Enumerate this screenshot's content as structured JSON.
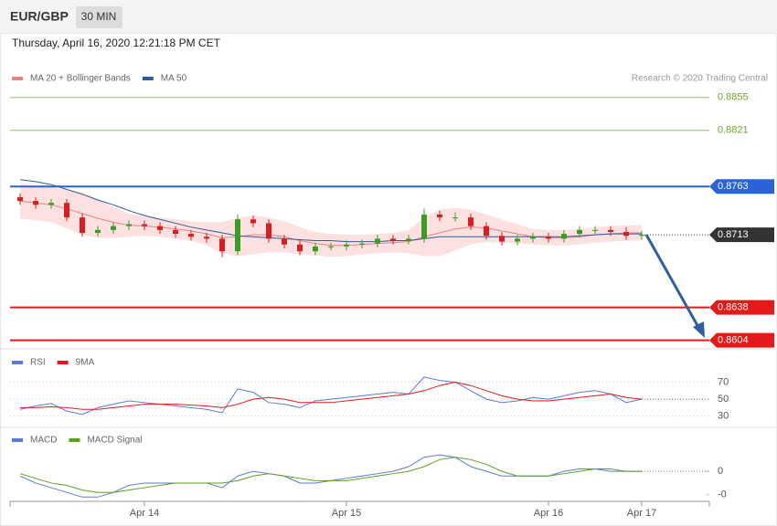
{
  "header": {
    "symbol": "EUR/GBP",
    "interval": "30 MIN",
    "timestamp": "Thursday, April 16, 2020 12:21:18 PM CET"
  },
  "chart_data": [
    {
      "type": "candlestick",
      "credit": "Research © 2020 Trading Central",
      "up_color": "#3a9d23",
      "down_color": "#d62020",
      "ylim": [
        0.8597,
        0.8885
      ],
      "open": [
        0.8752,
        0.8748,
        0.8744,
        0.8746,
        0.8731,
        0.8715,
        0.8718,
        0.8722,
        0.8724,
        0.8722,
        0.8718,
        0.8714,
        0.8711,
        0.8709,
        0.8696,
        0.8729,
        0.8725,
        0.8709,
        0.8703,
        0.8696,
        0.8701,
        0.8701,
        0.8703,
        0.8704,
        0.8709,
        0.8707,
        0.8709,
        0.8734,
        0.8731,
        0.8731,
        0.8722,
        0.8712,
        0.8706,
        0.8709,
        0.8711,
        0.8709,
        0.8714,
        0.8718,
        0.8718,
        0.8716,
        0.8712
      ],
      "high": [
        0.8756,
        0.8752,
        0.875,
        0.875,
        0.8735,
        0.8722,
        0.8726,
        0.8728,
        0.8728,
        0.8726,
        0.8722,
        0.8718,
        0.8715,
        0.8713,
        0.8734,
        0.8733,
        0.8729,
        0.8713,
        0.8707,
        0.8705,
        0.8705,
        0.8707,
        0.8708,
        0.8713,
        0.8713,
        0.8713,
        0.874,
        0.8738,
        0.8736,
        0.8735,
        0.8726,
        0.8716,
        0.8713,
        0.8715,
        0.8715,
        0.8718,
        0.8722,
        0.8722,
        0.8722,
        0.8721,
        0.8717
      ],
      "low": [
        0.8744,
        0.874,
        0.874,
        0.8727,
        0.8711,
        0.8711,
        0.8714,
        0.8718,
        0.8718,
        0.8714,
        0.871,
        0.8707,
        0.8705,
        0.869,
        0.8692,
        0.8721,
        0.8705,
        0.8699,
        0.8692,
        0.8692,
        0.8697,
        0.8697,
        0.8699,
        0.87,
        0.8703,
        0.8703,
        0.8705,
        0.8727,
        0.8727,
        0.8718,
        0.8708,
        0.8702,
        0.8702,
        0.8705,
        0.8705,
        0.8705,
        0.871,
        0.8714,
        0.8712,
        0.8708,
        0.8708
      ],
      "close": [
        0.8748,
        0.8744,
        0.8746,
        0.8731,
        0.8715,
        0.8718,
        0.8722,
        0.8724,
        0.8722,
        0.8718,
        0.8714,
        0.8711,
        0.8709,
        0.8696,
        0.8729,
        0.8725,
        0.8709,
        0.8703,
        0.8696,
        0.8701,
        0.8701,
        0.8703,
        0.8704,
        0.8709,
        0.8707,
        0.8709,
        0.8734,
        0.8731,
        0.8731,
        0.8722,
        0.8712,
        0.8706,
        0.8709,
        0.8711,
        0.8709,
        0.8714,
        0.8718,
        0.8718,
        0.8716,
        0.8712,
        0.8713
      ],
      "series": [
        {
          "name": "MA 20 + Bollinger Bands",
          "color": "#f08080",
          "band_color": "#fde0e0",
          "values": [
            0.8748,
            0.8746,
            0.8744,
            0.874,
            0.8735,
            0.873,
            0.8726,
            0.8723,
            0.8722,
            0.8721,
            0.8719,
            0.8717,
            0.8714,
            0.871,
            0.8711,
            0.8713,
            0.8713,
            0.8711,
            0.8707,
            0.8704,
            0.8702,
            0.8702,
            0.8703,
            0.8704,
            0.8705,
            0.8706,
            0.8711,
            0.8715,
            0.8719,
            0.8721,
            0.872,
            0.8717,
            0.8714,
            0.8711,
            0.871,
            0.871,
            0.8711,
            0.8713,
            0.8714,
            0.8715,
            0.8715
          ],
          "upper": [
            0.8766,
            0.8764,
            0.8762,
            0.876,
            0.8757,
            0.875,
            0.8742,
            0.8735,
            0.8732,
            0.8731,
            0.8729,
            0.8727,
            0.8726,
            0.8726,
            0.8731,
            0.8733,
            0.8731,
            0.8727,
            0.8721,
            0.8716,
            0.8714,
            0.8713,
            0.8713,
            0.8714,
            0.8715,
            0.8718,
            0.8731,
            0.8739,
            0.8741,
            0.8739,
            0.8734,
            0.8729,
            0.8724,
            0.8719,
            0.8718,
            0.8718,
            0.8719,
            0.8721,
            0.8722,
            0.8723,
            0.8723
          ],
          "lower": [
            0.873,
            0.8728,
            0.8726,
            0.872,
            0.8713,
            0.871,
            0.871,
            0.8711,
            0.8712,
            0.8711,
            0.8709,
            0.8707,
            0.8702,
            0.8694,
            0.8691,
            0.8693,
            0.8695,
            0.8695,
            0.8693,
            0.8692,
            0.869,
            0.8691,
            0.8693,
            0.8694,
            0.8695,
            0.8694,
            0.8691,
            0.8691,
            0.8697,
            0.8703,
            0.8706,
            0.8705,
            0.8704,
            0.8703,
            0.8702,
            0.8702,
            0.8703,
            0.8705,
            0.8706,
            0.8707,
            0.8707
          ]
        },
        {
          "name": "MA 50",
          "color": "#2c5aa0",
          "values": [
            0.877,
            0.8768,
            0.8765,
            0.876,
            0.8755,
            0.8749,
            0.8744,
            0.8738,
            0.8733,
            0.8729,
            0.8725,
            0.8721,
            0.8718,
            0.8715,
            0.8712,
            0.8711,
            0.871,
            0.8709,
            0.8708,
            0.8707,
            0.8707,
            0.8706,
            0.8706,
            0.8706,
            0.8707,
            0.8707,
            0.8709,
            0.8711,
            0.8711,
            0.8711,
            0.8711,
            0.8711,
            0.8711,
            0.8711,
            0.8711,
            0.8711,
            0.8712,
            0.8713,
            0.8714,
            0.8714,
            0.8714
          ]
        }
      ],
      "levels": [
        {
          "value": 0.8855,
          "color": "#6aa52e",
          "tag": false
        },
        {
          "value": 0.8821,
          "color": "#6aa52e",
          "tag": false
        },
        {
          "value": 0.8763,
          "color": "#2962d9",
          "tag": true
        },
        {
          "value": 0.8713,
          "color": "#333333",
          "tag": true,
          "style": "dotted"
        },
        {
          "value": 0.8638,
          "color": "#e31a1a",
          "tag": true
        },
        {
          "value": 0.8604,
          "color": "#e31a1a",
          "tag": true
        }
      ]
    },
    {
      "type": "line",
      "ylim": [
        20,
        106
      ],
      "yticks": [
        30,
        50,
        70
      ],
      "grid": true,
      "series": [
        {
          "name": "RSI",
          "color": "#5b7bd5",
          "values": [
            38,
            42,
            45,
            36,
            32,
            40,
            44,
            48,
            46,
            44,
            42,
            40,
            38,
            34,
            62,
            58,
            46,
            44,
            40,
            48,
            50,
            52,
            54,
            56,
            58,
            56,
            76,
            72,
            70,
            60,
            50,
            46,
            48,
            52,
            50,
            54,
            58,
            60,
            56,
            46,
            50
          ]
        },
        {
          "name": "9MA",
          "color": "#e31a1a",
          "values": [
            40,
            40,
            41,
            40,
            38,
            38,
            40,
            42,
            44,
            44,
            44,
            43,
            42,
            40,
            44,
            50,
            52,
            50,
            46,
            46,
            46,
            48,
            50,
            52,
            54,
            56,
            60,
            66,
            70,
            66,
            60,
            54,
            50,
            48,
            48,
            50,
            52,
            54,
            56,
            52,
            50
          ]
        }
      ]
    },
    {
      "type": "line",
      "ylim": [
        -0.0014,
        0.0018
      ],
      "yticks": [
        0,
        {
          "value": -0.001,
          "label": "-0"
        }
      ],
      "grid": false,
      "categories": [
        null,
        null,
        null,
        null,
        null,
        null,
        null,
        null,
        "Apr 14",
        null,
        null,
        null,
        null,
        null,
        null,
        null,
        null,
        null,
        null,
        null,
        null,
        "Apr 15",
        null,
        null,
        null,
        null,
        null,
        null,
        null,
        null,
        null,
        null,
        null,
        null,
        "Apr 16",
        null,
        null,
        null,
        null,
        null,
        "Apr 17"
      ],
      "series": [
        {
          "name": "MACD",
          "color": "#5b7bd5",
          "values": [
            -0.0002,
            -0.0005,
            -0.0007,
            -0.0009,
            -0.0011,
            -0.0011,
            -0.0009,
            -0.0006,
            -0.0005,
            -0.0005,
            -0.0005,
            -0.0005,
            -0.0005,
            -0.0007,
            -0.0002,
            0,
            -0.0001,
            -0.0002,
            -0.0005,
            -0.0005,
            -0.0004,
            -0.0003,
            -0.0002,
            -0.0001,
            0,
            0.0002,
            0.0006,
            0.0007,
            0.0006,
            0.0002,
            0,
            -0.0002,
            -0.0002,
            -0.0002,
            -0.0002,
            0,
            0.0001,
            0.0001,
            0,
            0,
            0
          ]
        },
        {
          "name": "MACD Signal",
          "color": "#5ca01e",
          "values": [
            -0.0001,
            -0.0003,
            -0.0005,
            -0.0006,
            -0.0008,
            -0.0009,
            -0.0009,
            -0.0008,
            -0.0007,
            -0.0006,
            -0.0005,
            -0.0005,
            -0.0005,
            -0.0005,
            -0.0004,
            -0.0002,
            -0.0001,
            -0.0002,
            -0.0003,
            -0.0004,
            -0.0004,
            -0.0004,
            -0.0003,
            -0.0002,
            -0.0001,
            0,
            0.0002,
            0.0005,
            0.0006,
            0.0005,
            0.0003,
            0,
            -0.0002,
            -0.0002,
            -0.0002,
            -0.0001,
            0,
            0.0001,
            0.0001,
            0,
            0
          ]
        }
      ]
    }
  ]
}
